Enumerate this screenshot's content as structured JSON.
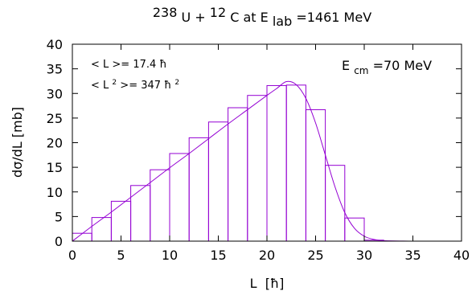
{
  "chart_data": {
    "type": "bar",
    "title": {
      "sup1": "238",
      "t1": "U + ",
      "sup2": "12",
      "t2": "C  at  E",
      "sub": "lab",
      "t3": "=1461 MeV"
    },
    "xlabel": "L  [ħ]",
    "ylabel": "dσ/dL [mb]",
    "xlim": [
      0,
      40
    ],
    "ylim": [
      0,
      40
    ],
    "xticks": [
      0,
      5,
      10,
      15,
      20,
      25,
      30,
      35,
      40
    ],
    "yticks": [
      0,
      5,
      10,
      15,
      20,
      25,
      30,
      35,
      40
    ],
    "grid": false,
    "bin_width": 2,
    "bins": [
      {
        "x0": 0,
        "value": 1.6
      },
      {
        "x0": 2,
        "value": 4.8
      },
      {
        "x0": 4,
        "value": 8.1
      },
      {
        "x0": 6,
        "value": 11.3
      },
      {
        "x0": 8,
        "value": 14.5
      },
      {
        "x0": 10,
        "value": 17.8
      },
      {
        "x0": 12,
        "value": 21.0
      },
      {
        "x0": 14,
        "value": 24.2
      },
      {
        "x0": 16,
        "value": 27.1
      },
      {
        "x0": 18,
        "value": 29.6
      },
      {
        "x0": 20,
        "value": 31.6
      },
      {
        "x0": 22,
        "value": 31.7
      },
      {
        "x0": 24,
        "value": 26.7
      },
      {
        "x0": 26,
        "value": 15.4
      },
      {
        "x0": 28,
        "value": 4.7
      },
      {
        "x0": 30,
        "value": 0.2
      },
      {
        "x0": 32,
        "value": 0.0
      },
      {
        "x0": 34,
        "value": 0.0
      },
      {
        "x0": 36,
        "value": 0.0
      },
      {
        "x0": 38,
        "value": 0.0
      }
    ],
    "fit_curve": {
      "x": [
        0,
        2,
        4,
        6,
        8,
        10,
        12,
        14,
        16,
        18,
        20,
        21,
        22,
        23,
        24,
        25,
        26,
        27,
        28,
        29,
        30,
        31,
        32,
        34,
        36,
        40
      ],
      "y": [
        0,
        3.0,
        5.9,
        8.9,
        11.9,
        14.9,
        17.8,
        20.8,
        23.8,
        26.7,
        29.6,
        31.0,
        32.4,
        31.8,
        29.0,
        24.0,
        17.5,
        11.0,
        5.8,
        2.6,
        1.0,
        0.35,
        0.1,
        0.02,
        0.0,
        0.0
      ]
    },
    "annotations": {
      "l_mean": "< L >= 17.4 ħ",
      "l2_mean_prefix": "< L",
      "l2_sup": "2",
      "l2_mean_mid": ">= 347 ħ",
      "l2_unit_sup": "2",
      "ecm_prefix": "E",
      "ecm_sub": "cm",
      "ecm_value": "=70 MeV"
    },
    "colors": {
      "series": "#9400d3",
      "axes": "#000000"
    }
  }
}
